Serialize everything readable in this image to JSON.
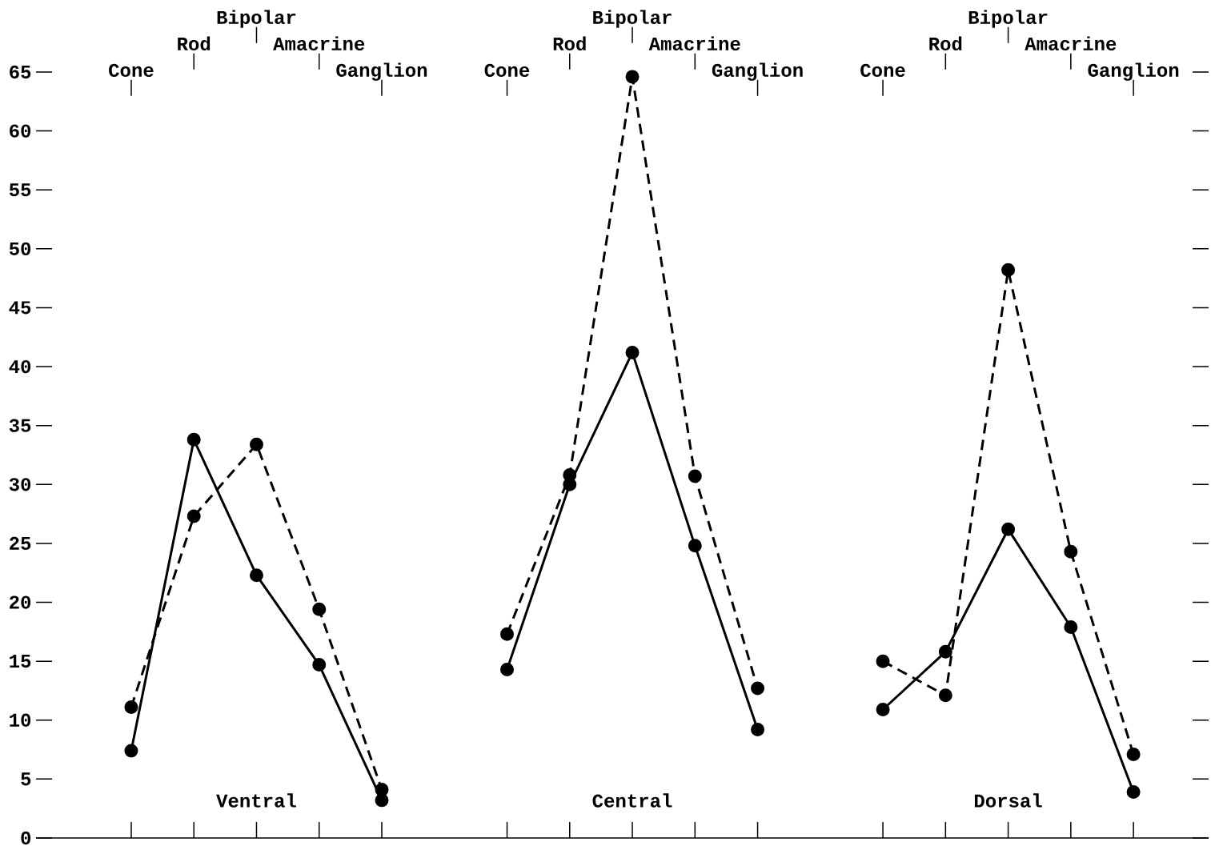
{
  "chart_data": {
    "type": "line",
    "categories": [
      "Cone",
      "Rod",
      "Bipolar",
      "Amacrine",
      "Ganglion",
      null,
      "Cone",
      "Rod",
      "Bipolar",
      "Amacrine",
      "Ganglion",
      null,
      "Cone",
      "Rod",
      "Bipolar",
      "Amacrine",
      "Ganglion"
    ],
    "series": [
      {
        "color": "#000000",
        "line_style": "solid",
        "values": [
          7.4,
          33.8,
          22.3,
          14.7,
          3.2,
          null,
          14.3,
          30.0,
          41.2,
          24.8,
          9.2,
          null,
          10.9,
          15.8,
          26.2,
          17.9,
          3.9
        ]
      },
      {
        "color": "#000000",
        "line_style": "dashed",
        "values": [
          11.1,
          27.3,
          33.4,
          19.4,
          4.1,
          null,
          17.3,
          30.8,
          64.6,
          30.7,
          12.7,
          null,
          15.0,
          12.1,
          48.2,
          24.3,
          7.1
        ]
      }
    ],
    "ylim": [
      0,
      65
    ],
    "yticks": [
      0,
      5,
      10,
      15,
      20,
      25,
      30,
      35,
      40,
      45,
      50,
      55,
      60,
      65
    ],
    "marker": "circle",
    "annotations": [
      "Ventral",
      "Central",
      "Dorsal"
    ]
  }
}
